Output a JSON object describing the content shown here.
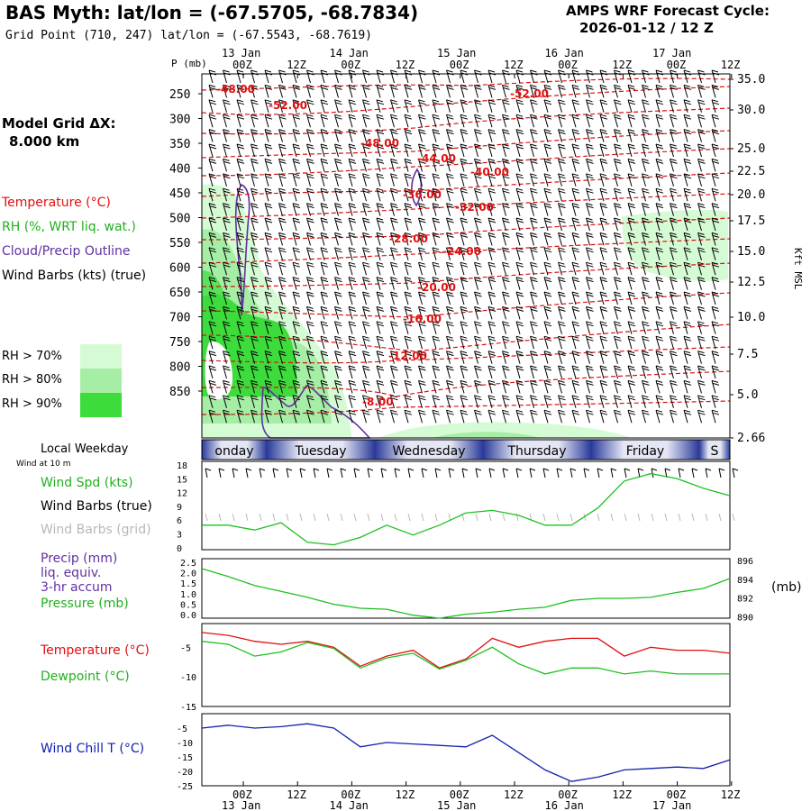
{
  "header": {
    "title": "BAS Myth:  lat/lon = (-67.5705, -68.7834)",
    "grid_point": "Grid Point (710, 247) lat/lon = (-67.5543, -68.7619)",
    "cycle_label": "AMPS WRF Forecast Cycle:",
    "cycle_value": "2026-01-12 / 12  Z"
  },
  "model_grid": {
    "label": "Model Grid ΔX:",
    "value": "8.000 km"
  },
  "legend": {
    "temperature": "Temperature (°C)",
    "rh": "RH (%, WRT liq. wat.)",
    "cloud": "Cloud/Precip Outline",
    "wind_barbs": "Wind Barbs (kts) (true)",
    "rh70": "RH > 70%",
    "rh80": "RH > 80%",
    "rh90": "RH > 90%",
    "colors": {
      "rh70": "#d4fbd4",
      "rh80": "#a6eda6",
      "rh90": "#3cdc3c",
      "temp": "#e01010",
      "cloud": "#6030a0"
    }
  },
  "time_axis": {
    "top_ticks": [
      "00Z",
      "12Z",
      "00Z",
      "12Z",
      "00Z",
      "12Z",
      "00Z",
      "12Z",
      "00Z",
      "12Z"
    ],
    "dates": [
      "13 Jan",
      "14 Jan",
      "15 Jan",
      "16 Jan",
      "17 Jan"
    ],
    "bottom_ticks": [
      "00Z",
      "12Z",
      "00Z",
      "12Z",
      "00Z",
      "12Z",
      "00Z",
      "12Z",
      "00Z",
      "12Z"
    ]
  },
  "weekday_bar": {
    "label": "Local Weekday",
    "wind_note": "Wind at 10 m",
    "days": [
      "onday",
      "Tuesday",
      "Wednesday",
      "Thursday",
      "Friday",
      "S"
    ]
  },
  "chart_data": [
    {
      "type": "contour",
      "pressure_label": "P (mb)",
      "pressure_ticks": [
        250,
        300,
        350,
        400,
        450,
        500,
        550,
        600,
        650,
        700,
        750,
        800,
        850
      ],
      "height_unit": "Kft MSL",
      "height_ticks": [
        "35.0",
        "30.0",
        "25.0",
        "22.5",
        "20.0",
        "17.5",
        "15.0",
        "12.5",
        "10.0",
        "7.5",
        "5.0",
        "2.66"
      ],
      "temperature_contour_labels": [
        "-48.00",
        "-52.00",
        "-48.00",
        "-44.00",
        "-40.00",
        "-36.00",
        "-32.00",
        "-28.00",
        "-24.00",
        "-20.00",
        "-16.00",
        "-12.00",
        "-8.00",
        "-52.00"
      ]
    },
    {
      "type": "line",
      "name": "wind_speed",
      "labels": {
        "spd": "Wind Spd (kts)",
        "barbs_true": "Wind Barbs (true)",
        "barbs_grid": "Wind Barbs (grid)"
      },
      "y_ticks": [
        "18",
        "15",
        "12",
        "9",
        "6",
        "3",
        "0"
      ],
      "ylim": [
        0,
        18
      ],
      "x_hours": [
        0,
        6,
        12,
        18,
        24,
        30,
        36,
        42,
        48,
        54,
        60,
        66,
        72,
        78,
        84,
        90,
        96,
        102,
        108,
        114,
        120
      ],
      "values": [
        5,
        5,
        4,
        5.5,
        1.5,
        1,
        2.5,
        5,
        3,
        5,
        7.5,
        8,
        7,
        5,
        5,
        8.5,
        14,
        15.5,
        14.5,
        12.5,
        11
      ]
    },
    {
      "type": "line",
      "name": "pressure",
      "labels": {
        "precip": "Precip (mm)",
        "precip2": "liq. equiv.",
        "precip3": "3-hr accum",
        "pressure": "Pressure (mb)",
        "unit": "(mb)"
      },
      "left_ticks": [
        "2.5",
        "2.0",
        "1.5",
        "1.0",
        "0.5",
        "0.0"
      ],
      "right_ticks": [
        "896",
        "894",
        "892",
        "890"
      ],
      "ylim": [
        890,
        896
      ],
      "x_hours": [
        0,
        6,
        12,
        18,
        24,
        30,
        36,
        42,
        48,
        54,
        60,
        66,
        72,
        78,
        84,
        90,
        96,
        102,
        108,
        114,
        120
      ],
      "values": [
        895.0,
        894.2,
        893.3,
        892.7,
        892.1,
        891.4,
        891.0,
        890.9,
        890.3,
        890.0,
        890.4,
        890.6,
        890.9,
        891.1,
        891.8,
        892.0,
        892.0,
        892.1,
        892.6,
        893.0,
        894.0
      ]
    },
    {
      "type": "line",
      "name": "temperature_dewpoint",
      "labels": {
        "temperature": "Temperature (°C)",
        "dewpoint": "Dewpoint (°C)"
      },
      "y_ticks": [
        "-5",
        "-10",
        "-15"
      ],
      "ylim": [
        -15,
        -1
      ],
      "x_hours": [
        0,
        6,
        12,
        18,
        24,
        30,
        36,
        42,
        48,
        54,
        60,
        66,
        72,
        78,
        84,
        90,
        96,
        102,
        108,
        114,
        120
      ],
      "series": [
        {
          "name": "Temperature (°C)",
          "color": "#e01010",
          "values": [
            -2.5,
            -3.0,
            -4.0,
            -4.5,
            -4.0,
            -5.0,
            -8.2,
            -6.5,
            -5.5,
            -8.5,
            -7.0,
            -3.5,
            -5.0,
            -4.0,
            -3.5,
            -3.5,
            -6.5,
            -5.0,
            -5.5,
            -5.5,
            -6.0
          ]
        },
        {
          "name": "Dewpoint (°C)",
          "color": "#20c020",
          "values": [
            -4.0,
            -4.5,
            -6.5,
            -5.8,
            -4.2,
            -5.2,
            -8.5,
            -6.8,
            -6.0,
            -8.7,
            -7.2,
            -5.0,
            -7.8,
            -9.5,
            -8.5,
            -8.5,
            -9.5,
            -9.0,
            -9.5,
            -9.5,
            -9.5
          ]
        }
      ]
    },
    {
      "type": "line",
      "name": "wind_chill",
      "labels": {
        "windchill": "Wind Chill T (°C)"
      },
      "y_ticks": [
        "-5",
        "-10",
        "-15",
        "-20",
        "-25"
      ],
      "ylim": [
        -25,
        0
      ],
      "x_hours": [
        0,
        6,
        12,
        18,
        24,
        30,
        36,
        42,
        48,
        54,
        60,
        66,
        72,
        78,
        84,
        90,
        96,
        102,
        108,
        114,
        120
      ],
      "values": [
        -5,
        -4,
        -5,
        -4.5,
        -3.5,
        -5,
        -11.5,
        -10,
        -10.5,
        -11,
        -11.5,
        -7.5,
        -13.5,
        -19.5,
        -23.5,
        -22,
        -19.5,
        -19,
        -18.5,
        -19,
        -16
      ]
    }
  ]
}
